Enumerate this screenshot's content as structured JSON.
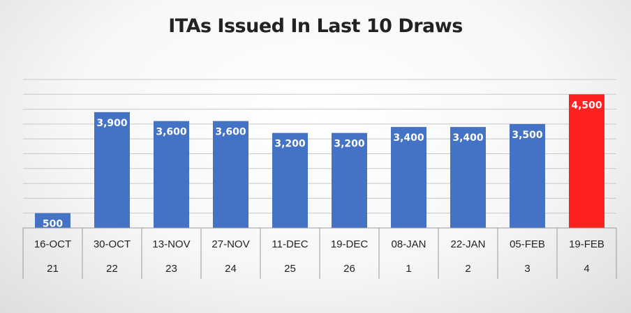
{
  "chart_data": {
    "type": "bar",
    "title": "ITAs Issued In Last 10 Draws",
    "categories": [
      "16-OCT",
      "30-OCT",
      "13-NOV",
      "27-NOV",
      "11-DEC",
      "19-DEC",
      "08-JAN",
      "22-JAN",
      "05-FEB",
      "19-FEB"
    ],
    "sub_categories": [
      "21",
      "22",
      "23",
      "24",
      "25",
      "26",
      "1",
      "2",
      "3",
      "4"
    ],
    "values": [
      500,
      3900,
      3600,
      3600,
      3200,
      3200,
      3400,
      3400,
      3500,
      4500
    ],
    "data_labels": [
      "500",
      "3,900",
      "3,600",
      "3,600",
      "3,200",
      "3,200",
      "3,400",
      "3,400",
      "3,500",
      "4,500"
    ],
    "bar_colors": [
      "#4472C4",
      "#4472C4",
      "#4472C4",
      "#4472C4",
      "#4472C4",
      "#4472C4",
      "#4472C4",
      "#4472C4",
      "#4472C4",
      "#FF2020"
    ],
    "ylim": [
      0,
      5000
    ],
    "grid": true,
    "legend": false
  }
}
